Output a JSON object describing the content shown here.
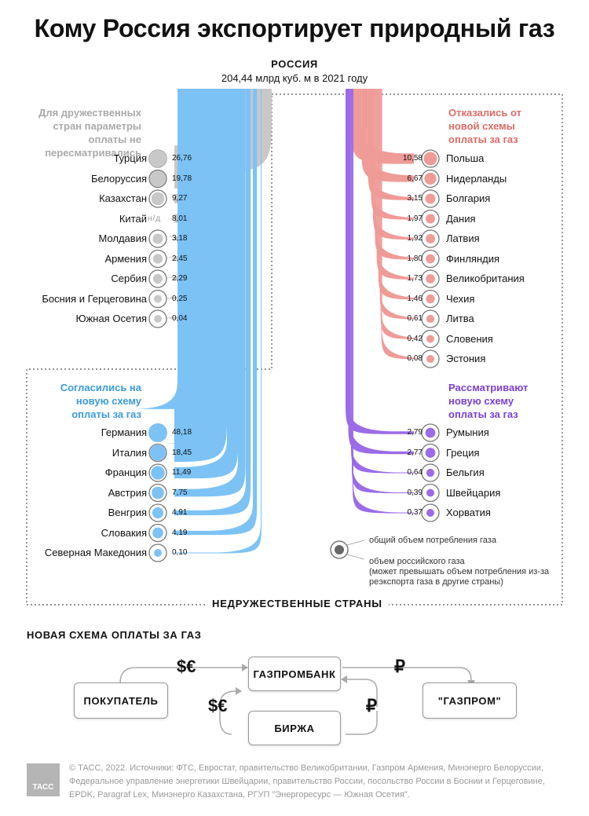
{
  "title": "Кому Россия экспортирует природный газ",
  "source": {
    "label": "РОССИЯ",
    "sub": "204,44 млрд куб. м в 2021 году"
  },
  "groups": {
    "friendly": "Для дружественных стран параметры оплаты не пересматривались",
    "refused": "Отказались от новой схемы оплаты за газ",
    "agreed": "Согласились на новую схему оплаты за газ",
    "considering": "Рассматривают новую схему оплаты за газ"
  },
  "unfriendly_label": "НЕДРУЖЕСТВЕННЫЕ СТРАНЫ",
  "colors": {
    "friendly": "#c8c8c8",
    "refused": "#ef9b97",
    "agreed": "#7cc2f5",
    "considering": "#9b6be8"
  },
  "chart_data": {
    "type": "sankey",
    "unit": "млрд куб. м",
    "total": 204.44,
    "friendly": [
      {
        "country": "Турция",
        "value": 26.76,
        "label": "26,76"
      },
      {
        "country": "Белоруссия",
        "value": 19.78,
        "label": "19,78"
      },
      {
        "country": "Казахстан",
        "value": 9.27,
        "label": "9,27"
      },
      {
        "country": "Китай",
        "value": 8.01,
        "label": "8,01",
        "note": "н/д"
      },
      {
        "country": "Молдавия",
        "value": 3.18,
        "label": "3,18"
      },
      {
        "country": "Армения",
        "value": 2.45,
        "label": "2,45"
      },
      {
        "country": "Сербия",
        "value": 2.29,
        "label": "2,29"
      },
      {
        "country": "Босния и Герцеговина",
        "value": 0.25,
        "label": "0,25"
      },
      {
        "country": "Южная Осетия",
        "value": 0.04,
        "label": "0,04"
      }
    ],
    "refused": [
      {
        "country": "Польша",
        "value": 10.58,
        "label": "10,58"
      },
      {
        "country": "Нидерланды",
        "value": 6.67,
        "label": "6,67"
      },
      {
        "country": "Болгария",
        "value": 3.15,
        "label": "3,15"
      },
      {
        "country": "Дания",
        "value": 1.97,
        "label": "1,97"
      },
      {
        "country": "Латвия",
        "value": 1.92,
        "label": "1,92"
      },
      {
        "country": "Финляндия",
        "value": 1.8,
        "label": "1,80"
      },
      {
        "country": "Великобритания",
        "value": 1.73,
        "label": "1,73"
      },
      {
        "country": "Чехия",
        "value": 1.46,
        "label": "1,46"
      },
      {
        "country": "Литва",
        "value": 0.61,
        "label": "0,61"
      },
      {
        "country": "Словения",
        "value": 0.42,
        "label": "0,42"
      },
      {
        "country": "Эстония",
        "value": 0.08,
        "label": "0,08"
      }
    ],
    "agreed": [
      {
        "country": "Германия",
        "value": 48.18,
        "label": "48,18"
      },
      {
        "country": "Италия",
        "value": 18.45,
        "label": "18,45"
      },
      {
        "country": "Франция",
        "value": 11.49,
        "label": "11,49"
      },
      {
        "country": "Австрия",
        "value": 7.75,
        "label": "7,75"
      },
      {
        "country": "Венгрия",
        "value": 4.91,
        "label": "4,91"
      },
      {
        "country": "Словакия",
        "value": 4.19,
        "label": "4,19"
      },
      {
        "country": "Северная Македония",
        "value": 0.1,
        "label": "0,10"
      }
    ],
    "considering": [
      {
        "country": "Румыния",
        "value": 2.79,
        "label": "2,79"
      },
      {
        "country": "Греция",
        "value": 2.77,
        "label": "2,77"
      },
      {
        "country": "Бельгия",
        "value": 0.64,
        "label": "0,64"
      },
      {
        "country": "Швейцария",
        "value": 0.39,
        "label": "0,39"
      },
      {
        "country": "Хорватия",
        "value": 0.37,
        "label": "0,37"
      }
    ]
  },
  "legend": {
    "total": "общий объем потребления газа",
    "russian": "объем российского газа",
    "russian_note": "(может превышать объем потребления из-за реэкспорта газа в другие страны)"
  },
  "scheme": {
    "title": "НОВАЯ СХЕМА ОПЛАТЫ ЗА ГАЗ",
    "buyer": "ПОКУПАТЕЛЬ",
    "bank": "ГАЗПРОМБАНК",
    "exchange": "БИРЖА",
    "gazprom": "\"ГАЗПРОМ\"",
    "fx": "$€",
    "rub": "₽"
  },
  "footer": "© ТАСС, 2022. Источники: ФТС, Евростат, правительство Великобритании, Газпром Армения, Минэнерго Белоруссии, Федеральное управление энергетики Швейцарии, правительство России, посольство России в Боснии и Герцеговине, EPDK, Paragraf Lex, Минэнерго Казахстана, РГУП \"Энергоресурс — Южная Осетия\".",
  "logo": "ТАСС"
}
